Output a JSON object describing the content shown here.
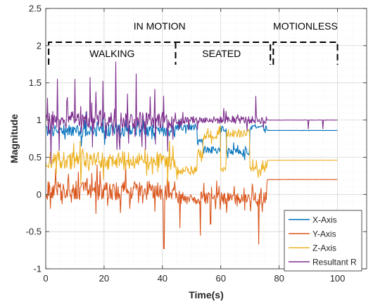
{
  "chart_data": {
    "type": "line",
    "xlabel": "Time(s)",
    "ylabel": "Magnitude",
    "xlim": [
      0,
      110
    ],
    "ylim": [
      -1,
      2.5
    ],
    "xticks": [
      0,
      20,
      40,
      60,
      80,
      100
    ],
    "yticks": [
      -1,
      -0.5,
      0,
      0.5,
      1,
      1.5,
      2,
      2.5
    ],
    "xticklabels": [
      "0",
      "20",
      "40",
      "60",
      "80",
      "100"
    ],
    "yticklabels": [
      "-1",
      "-0.5",
      "0",
      "0.5",
      "1",
      "1.5",
      "2",
      "2.5"
    ],
    "grid": true,
    "minor_grid": true,
    "legend_position": "bottom-right",
    "annotations": {
      "in_motion": {
        "label": "IN MOTION",
        "range": [
          1,
          77
        ]
      },
      "motionless": {
        "label": "MOTIONLESS",
        "range": [
          78,
          100
        ]
      },
      "walking": {
        "label": "WALKING",
        "range": [
          1,
          44.5
        ]
      },
      "seated": {
        "label": "SEATED",
        "range": [
          44.5,
          76
        ]
      }
    },
    "series": [
      {
        "name": "X-Axis",
        "color": "#0072BD",
        "segments": [
          {
            "t": [
              0,
              44.5
            ],
            "base": 0.86,
            "noise": 0.08,
            "spike": 0.18
          },
          {
            "t": [
              44.5,
              52
            ],
            "base": 0.9,
            "noise": 0.04,
            "spike": 0.08
          },
          {
            "t": [
              52,
              54
            ],
            "base": 0.72,
            "noise": 0.06,
            "spike": 0.1
          },
          {
            "t": [
              54,
              60
            ],
            "base": 0.6,
            "noise": 0.05,
            "spike": 0.1
          },
          {
            "t": [
              60,
              62
            ],
            "base": 0.88,
            "noise": 0.04,
            "spike": 0.05
          },
          {
            "t": [
              62,
              70
            ],
            "base": 0.58,
            "noise": 0.05,
            "spike": 0.1
          },
          {
            "t": [
              70,
              76
            ],
            "base": 0.9,
            "noise": 0.04,
            "spike": 0.06
          },
          {
            "t": [
              76,
              100
            ],
            "base": 0.86,
            "noise": 0.002,
            "spike": 0
          }
        ]
      },
      {
        "name": "Y-Axis",
        "color": "#D95319",
        "segments": [
          {
            "t": [
              0,
              44.5
            ],
            "base": 0.05,
            "noise": 0.13,
            "spike": 0.28
          },
          {
            "t": [
              44.5,
              76
            ],
            "base": -0.05,
            "noise": 0.08,
            "spike": 0.2
          },
          {
            "t": [
              76,
              100
            ],
            "base": 0.2,
            "noise": 0.002,
            "spike": 0
          }
        ],
        "dips": [
          [
            40.5,
            -0.73
          ],
          [
            46,
            -0.45
          ],
          [
            53,
            -0.55
          ],
          [
            56.5,
            -0.4
          ],
          [
            73,
            -0.67
          ]
        ]
      },
      {
        "name": "Z-Axis",
        "color": "#EDB120",
        "segments": [
          {
            "t": [
              0,
              44.5
            ],
            "base": 0.45,
            "noise": 0.12,
            "spike": 0.25
          },
          {
            "t": [
              44.5,
              52
            ],
            "base": 0.32,
            "noise": 0.06,
            "spike": 0.1
          },
          {
            "t": [
              52,
              54
            ],
            "base": 0.55,
            "noise": 0.08,
            "spike": 0.12
          },
          {
            "t": [
              54,
              60
            ],
            "base": 0.8,
            "noise": 0.06,
            "spike": 0.12
          },
          {
            "t": [
              60,
              62
            ],
            "base": 0.35,
            "noise": 0.05,
            "spike": 0.08
          },
          {
            "t": [
              62,
              70
            ],
            "base": 0.82,
            "noise": 0.06,
            "spike": 0.1
          },
          {
            "t": [
              70,
              76
            ],
            "base": 0.35,
            "noise": 0.05,
            "spike": 0.1
          },
          {
            "t": [
              76,
              100
            ],
            "base": 0.46,
            "noise": 0.002,
            "spike": 0
          }
        ]
      },
      {
        "name": "Resultant R",
        "color": "#7E2F8E",
        "segments": [
          {
            "t": [
              0,
              44.5
            ],
            "base": 1.0,
            "noise": 0.12,
            "spike": 0.5
          },
          {
            "t": [
              44.5,
              76
            ],
            "base": 1.0,
            "noise": 0.05,
            "spike": 0.15
          },
          {
            "t": [
              76,
              100
            ],
            "base": 1.0,
            "noise": 0.002,
            "spike": 0
          }
        ],
        "peaks": [
          [
            24,
            1.78
          ],
          [
            31,
            1.62
          ],
          [
            10,
            1.55
          ],
          [
            4,
            1.55
          ],
          [
            72,
            1.32
          ]
        ],
        "dips": [
          [
            90,
            0.88
          ],
          [
            95,
            0.88
          ]
        ]
      }
    ]
  }
}
